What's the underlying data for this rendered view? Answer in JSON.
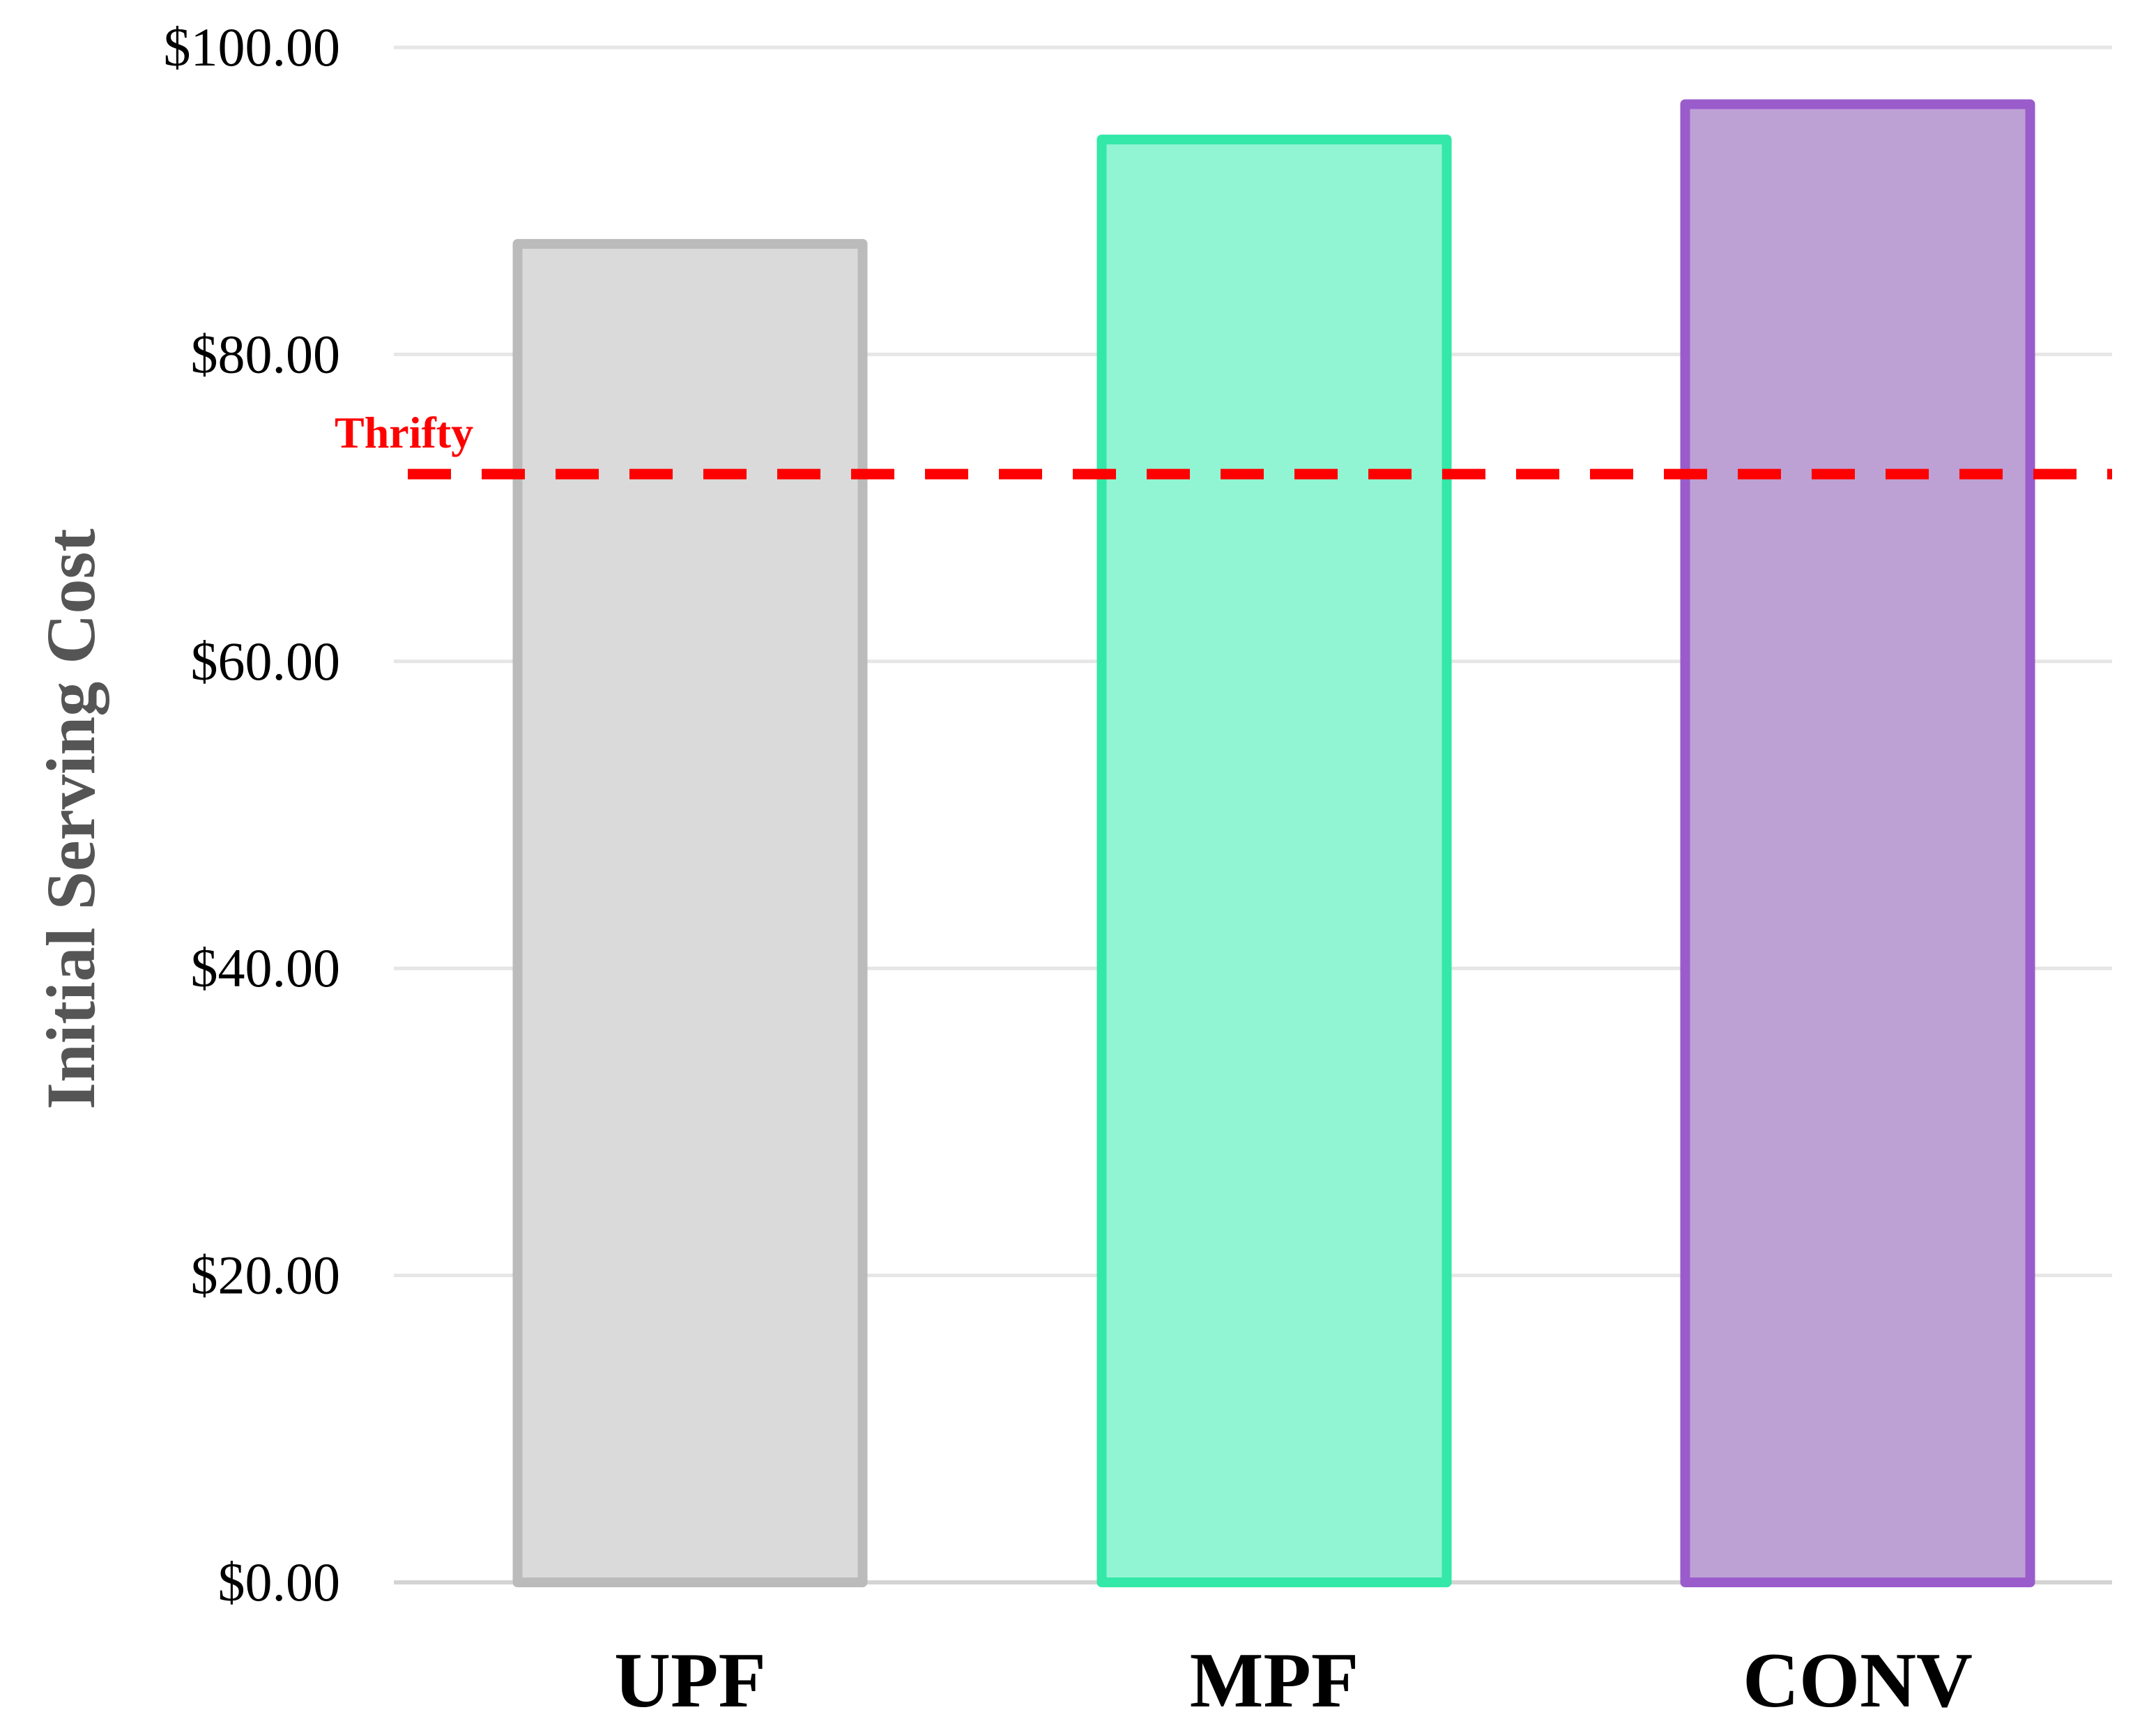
{
  "chart_data": {
    "type": "bar",
    "title": "",
    "xlabel": "",
    "ylabel": "Initial Serving Cost",
    "categories": [
      "UPF",
      "MPF",
      "CONV"
    ],
    "values": [
      87.2,
      94.0,
      96.3
    ],
    "ylim": [
      0,
      100
    ],
    "yticks": [
      0,
      20,
      40,
      60,
      80,
      100
    ],
    "ytick_labels": [
      "$0.00",
      "$20.00",
      "$40.00",
      "$60.00",
      "$80.00",
      "$100.00"
    ],
    "grid": "horizontal",
    "legend": "none",
    "bar_styles": [
      {
        "fill": "#dadada",
        "stroke": "#bbbbbb"
      },
      {
        "fill": "#91f5d3",
        "stroke": "#33e8a8"
      },
      {
        "fill": "#bda1d4",
        "stroke": "#9a5ccb"
      }
    ],
    "reference_line": {
      "label": "Thrifty",
      "value": 72.2,
      "color": "#ff0000",
      "style": "dashed"
    }
  }
}
